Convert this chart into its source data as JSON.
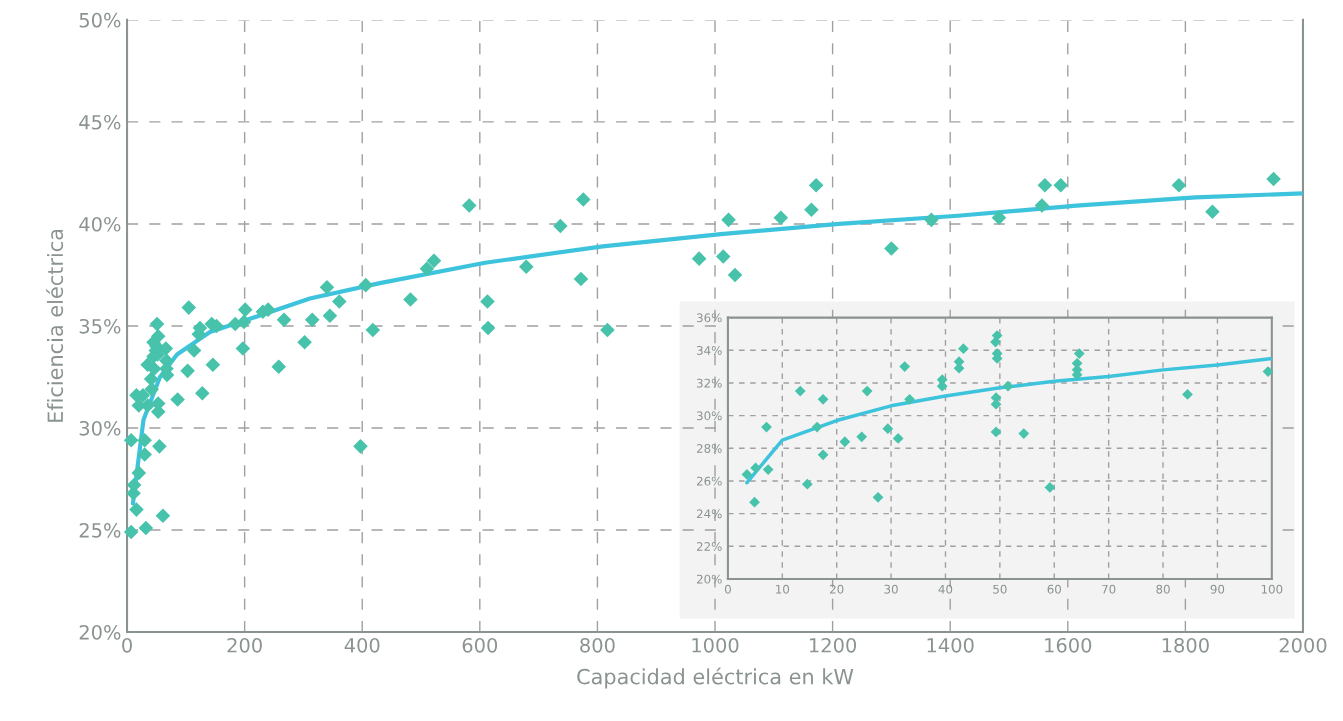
{
  "chart_data": [
    {
      "type": "scatter",
      "xlabel": "Capacidad eléctrica en kW",
      "ylabel": "Eficiencia eléctrica",
      "grid": true,
      "legend": false,
      "xlim": [
        0,
        2000
      ],
      "xticks": [
        0,
        200,
        400,
        600,
        800,
        1000,
        1200,
        1400,
        1600,
        1800,
        2000
      ],
      "ylim": [
        20,
        50
      ],
      "yticks": [
        {
          "value": 20,
          "label": "20%"
        },
        {
          "value": 25,
          "label": "25%"
        },
        {
          "value": 30,
          "label": "30%"
        },
        {
          "value": 35,
          "label": "35%"
        },
        {
          "value": 40,
          "label": "40%"
        },
        {
          "value": 45,
          "label": "45%"
        },
        {
          "value": 50,
          "label": "50%"
        }
      ],
      "series": [
        {
          "marker": "diamond",
          "color": "#47c2ab",
          "x": [
            7,
            32,
            61,
            16,
            11,
            12,
            20,
            30,
            30,
            7,
            55,
            16,
            27,
            20,
            35,
            53,
            53,
            42,
            41,
            35,
            46,
            45,
            49,
            52,
            50,
            66,
            45,
            53,
            51,
            67,
            67,
            68,
            86,
            103,
            105,
            114,
            122,
            124,
            128,
            146,
            144,
            152,
            184,
            197,
            199,
            201,
            231,
            240,
            258,
            267,
            302,
            315,
            340,
            345,
            361,
            397,
            406,
            418,
            482,
            510,
            522,
            582,
            613,
            614,
            679,
            737,
            772,
            776,
            817,
            973,
            1014,
            1023,
            1034,
            1112,
            1164,
            1172,
            1300,
            1368,
            1483,
            1556,
            1561,
            1588,
            1789,
            1846,
            1950
          ],
          "values": [
            24.9,
            25.1,
            25.7,
            26.0,
            26.8,
            27.2,
            27.8,
            28.7,
            29.4,
            29.4,
            29.1,
            31.6,
            31.6,
            31.1,
            31.1,
            31.2,
            30.8,
            31.9,
            32.4,
            33.1,
            32.9,
            33.5,
            33.8,
            33.6,
            34.0,
            33.9,
            34.2,
            34.5,
            35.1,
            33.3,
            32.9,
            32.6,
            31.4,
            32.8,
            35.9,
            33.8,
            34.6,
            34.9,
            31.7,
            33.1,
            35.1,
            35.0,
            35.1,
            33.9,
            35.2,
            35.8,
            35.7,
            35.8,
            33.0,
            35.3,
            34.2,
            35.3,
            36.9,
            35.5,
            36.2,
            29.1,
            37.0,
            34.8,
            36.3,
            37.8,
            38.2,
            40.9,
            36.2,
            34.9,
            37.9,
            39.9,
            37.3,
            41.2,
            34.8,
            38.3,
            38.4,
            40.2,
            37.5,
            40.3,
            40.7,
            41.9,
            38.8,
            40.2,
            40.3,
            40.9,
            41.9,
            41.9,
            41.9,
            40.6,
            42.2
          ]
        },
        {
          "type": "line",
          "color": "#3ec3dc",
          "line_style": "solid",
          "x": [
            10,
            28,
            56,
            85,
            141,
            204,
            311,
            430,
            609,
            809,
            1010,
            1211,
            1413,
            1615,
            1817,
            2000
          ],
          "values": [
            26.3,
            30.4,
            32.5,
            33.6,
            34.7,
            35.3,
            36.35,
            37.1,
            38.1,
            38.9,
            39.5,
            40.0,
            40.4,
            40.9,
            41.3,
            41.5
          ]
        }
      ]
    },
    {
      "type": "scatter",
      "grid": true,
      "legend": false,
      "xlim": [
        0,
        100
      ],
      "xticks": [
        0,
        10,
        20,
        30,
        40,
        50,
        60,
        70,
        80,
        90,
        100
      ],
      "ylim": [
        20,
        36
      ],
      "yticks": [
        {
          "value": 20,
          "label": "20%"
        },
        {
          "value": 22,
          "label": "22%"
        },
        {
          "value": 24,
          "label": "24%"
        },
        {
          "value": 26,
          "label": "26%"
        },
        {
          "value": 28,
          "label": "28%"
        },
        {
          "value": 30,
          "label": "30%"
        },
        {
          "value": 32,
          "label": "32%"
        },
        {
          "value": 34,
          "label": "34%"
        },
        {
          "value": 36,
          "label": "36%"
        }
      ],
      "series": [
        {
          "marker": "diamond",
          "color": "#47c2ab",
          "x": [
            3.5,
            5.1,
            4.9,
            7.1,
            7.4,
            13.3,
            14.6,
            16.4,
            17.5,
            17.5,
            21.5,
            24.6,
            25.6,
            27.6,
            29.4,
            31.3,
            32.5,
            33.4,
            39.4,
            39.4,
            42.5,
            42.5,
            43.3,
            49.2,
            49.5,
            49.5,
            49.5,
            49.3,
            49.3,
            49.3,
            51.5,
            54.4,
            59.2,
            64.6,
            64.2,
            64.2,
            64.2,
            84.5,
            99.3
          ],
          "values": [
            26.4,
            26.8,
            24.7,
            29.3,
            26.7,
            31.5,
            25.8,
            29.3,
            31.0,
            27.6,
            28.4,
            28.7,
            31.5,
            25.0,
            29.2,
            28.6,
            33.0,
            31.0,
            32.2,
            31.8,
            33.3,
            32.9,
            34.1,
            34.5,
            34.9,
            33.8,
            33.5,
            31.1,
            30.7,
            29.0,
            31.8,
            28.9,
            25.6,
            33.8,
            33.2,
            32.8,
            32.5,
            31.3,
            32.7
          ]
        },
        {
          "type": "line",
          "color": "#3ec3dc",
          "line_style": "solid",
          "x": [
            3.5,
            10,
            20,
            30,
            40,
            50,
            60,
            70,
            80,
            90,
            100
          ],
          "values": [
            25.9,
            28.5,
            29.7,
            30.6,
            31.2,
            31.7,
            32.1,
            32.4,
            32.8,
            33.1,
            33.5
          ]
        }
      ]
    }
  ]
}
